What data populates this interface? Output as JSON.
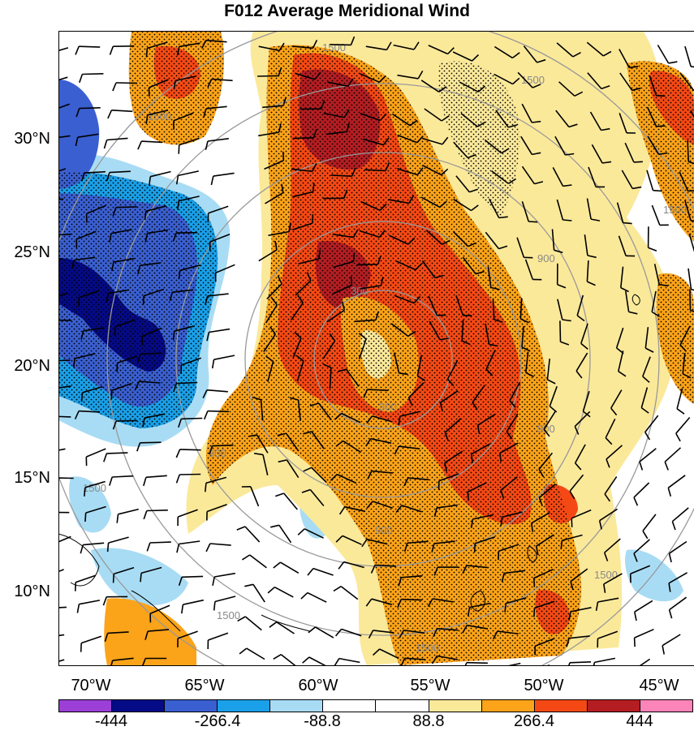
{
  "title": "F012 Average Meridional Wind",
  "lat_labels": [
    "30°N",
    "25°N",
    "20°N",
    "15°N",
    "10°N"
  ],
  "lon_labels": [
    "70°W",
    "65°W",
    "60°W",
    "55°W",
    "50°W",
    "45°W"
  ],
  "colorbar": {
    "colors": [
      "#9b3fd6",
      "#050a86",
      "#3a5fd0",
      "#1aa0e8",
      "#a8dcf4",
      "#ffffff",
      "#ffffff",
      "#fbe99a",
      "#fba319",
      "#f54915",
      "#b41e22",
      "#fb84b8"
    ],
    "labels": [
      "-444",
      "-266.4",
      "-88.8",
      "88.8",
      "266.4",
      "444"
    ]
  },
  "range_rings": {
    "labels": [
      "300",
      "900",
      "1500"
    ]
  }
}
